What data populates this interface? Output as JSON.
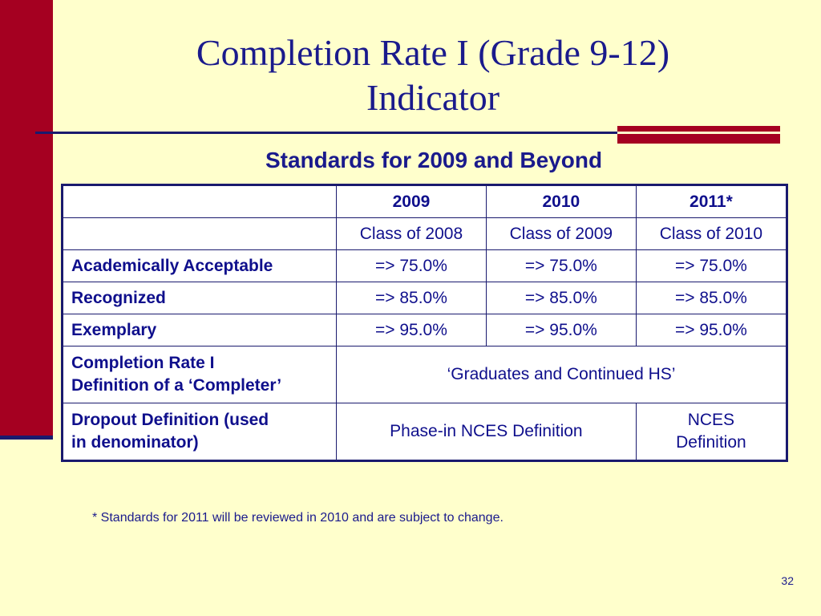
{
  "slide": {
    "title_line1": "Completion Rate I (Grade 9-12)",
    "title_line2": "Indicator",
    "subtitle": "Standards for 2009 and Beyond",
    "footnote": "* Standards for 2011 will be reviewed in 2010 and are subject to change.",
    "page_number": "32"
  },
  "table": {
    "years": [
      "2009",
      "2010",
      "2011*"
    ],
    "classes": [
      "Class of 2008",
      "Class of 2009",
      "Class of 2010"
    ],
    "rows": [
      {
        "label": "Academically Acceptable",
        "values": [
          "=> 75.0%",
          "=> 75.0%",
          "=> 75.0%"
        ]
      },
      {
        "label": "Recognized",
        "values": [
          "=> 85.0%",
          "=> 85.0%",
          "=> 85.0%"
        ]
      },
      {
        "label": "Exemplary",
        "values": [
          "=> 95.0%",
          "=> 95.0%",
          "=> 95.0%"
        ]
      }
    ],
    "completer_row": {
      "label_line1": "Completion Rate I",
      "label_line2": "Definition of a ‘Completer’",
      "value": "‘Graduates and Continued HS’"
    },
    "dropout_row": {
      "label_line1": "Dropout Definition (used",
      "label_line2": "in denominator)",
      "value_2009_2010": "Phase-in NCES Definition",
      "value_2011_line1": "NCES",
      "value_2011_line2": "Definition"
    }
  },
  "colors": {
    "background": "#FFFFCC",
    "accent_red": "#A50021",
    "title_blue": "#1A1A8C",
    "rule_navy": "#1A1A6E"
  }
}
